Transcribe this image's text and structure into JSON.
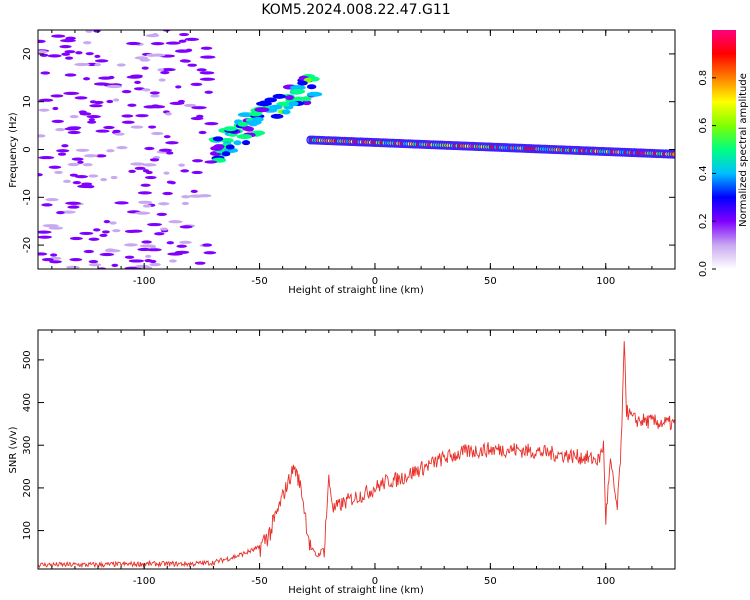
{
  "title": "KOM5.2024.008.22.47.G11",
  "chart_data": [
    {
      "type": "heatmap",
      "xlabel": "Height of straight line (km)",
      "ylabel": "Frequency (Hz)",
      "xlim": [
        -146,
        130
      ],
      "ylim": [
        -25,
        25
      ],
      "xticks": [
        -100,
        -50,
        0,
        50,
        100
      ],
      "yticks": [
        -20,
        -10,
        0,
        10,
        20
      ],
      "colorbar": {
        "label": "Normalized spectral amplitude",
        "range": [
          0,
          1
        ],
        "ticks": [
          0.0,
          0.2,
          0.4,
          0.6,
          0.8
        ],
        "colormap": "rainbow",
        "colors": [
          "#ffffff",
          "#c8a8f0",
          "#8000ff",
          "#0000ff",
          "#00c0ff",
          "#00ff80",
          "#80ff00",
          "#ffff00",
          "#ff8000",
          "#ff0000",
          "#ff0080"
        ]
      },
      "features": [
        {
          "label": "signal trace",
          "x_range": [
            -28,
            130
          ],
          "freq_hz": [
            2,
            -1
          ],
          "amplitude": 0.9
        },
        {
          "label": "rising feature",
          "x_range": [
            -70,
            -25
          ],
          "freq_hz": [
            0,
            14
          ],
          "amplitude": 0.4
        },
        {
          "label": "noise",
          "x_range": [
            -146,
            -70
          ],
          "freq_hz": [
            -25,
            25
          ],
          "amplitude": 0.1
        }
      ]
    },
    {
      "type": "line",
      "xlabel": "Height of straight line (km)",
      "ylabel": "SNR (v/v)",
      "xlim": [
        -146,
        130
      ],
      "ylim": [
        10,
        570
      ],
      "xticks": [
        -100,
        -50,
        0,
        50,
        100
      ],
      "yticks": [
        100,
        200,
        300,
        400,
        500
      ],
      "series": [
        {
          "color": "#e8312a",
          "points": [
            [
              -146,
              20
            ],
            [
              -120,
              20
            ],
            [
              -100,
              22
            ],
            [
              -80,
              22
            ],
            [
              -70,
              25
            ],
            [
              -60,
              40
            ],
            [
              -50,
              60
            ],
            [
              -45,
              100
            ],
            [
              -40,
              180
            ],
            [
              -35,
              250
            ],
            [
              -32,
              200
            ],
            [
              -28,
              60
            ],
            [
              -25,
              40
            ],
            [
              -22,
              60
            ],
            [
              -20,
              220
            ],
            [
              -18,
              150
            ],
            [
              -15,
              160
            ],
            [
              -10,
              175
            ],
            [
              -5,
              185
            ],
            [
              0,
              200
            ],
            [
              5,
              215
            ],
            [
              10,
              220
            ],
            [
              20,
              245
            ],
            [
              30,
              270
            ],
            [
              40,
              285
            ],
            [
              50,
              290
            ],
            [
              60,
              290
            ],
            [
              70,
              285
            ],
            [
              80,
              278
            ],
            [
              90,
              272
            ],
            [
              97,
              265
            ],
            [
              99,
              300
            ],
            [
              100,
              130
            ],
            [
              102,
              260
            ],
            [
              105,
              150
            ],
            [
              107,
              330
            ],
            [
              108,
              560
            ],
            [
              109,
              380
            ],
            [
              112,
              360
            ],
            [
              120,
              355
            ],
            [
              130,
              350
            ]
          ]
        }
      ]
    }
  ]
}
